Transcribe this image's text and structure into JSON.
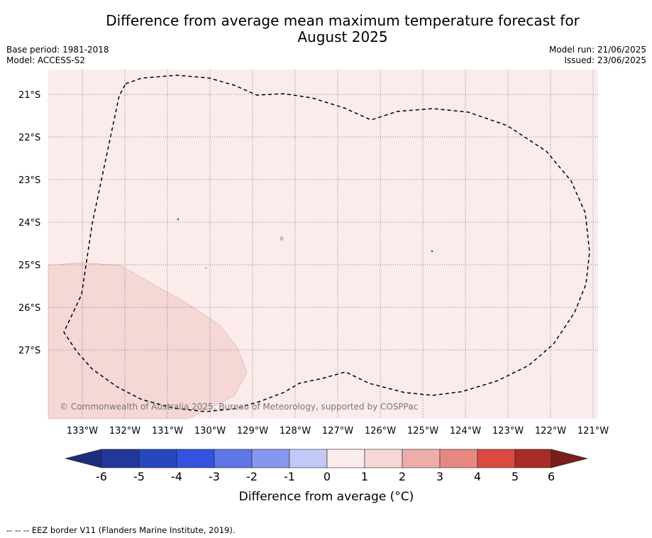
{
  "title": {
    "line1": "Difference from average mean maximum temperature forecast for",
    "line2": "August 2025"
  },
  "meta": {
    "base_period": "Base period: 1981-2018",
    "model": "Model: ACCESS-S2",
    "model_run": "Model run: 21/06/2025",
    "issued": "Issued: 23/06/2025"
  },
  "map": {
    "lon_labels": [
      "133°W",
      "132°W",
      "131°W",
      "130°W",
      "129°W",
      "128°W",
      "127°W",
      "126°W",
      "125°W",
      "124°W",
      "123°W",
      "122°W",
      "121°W"
    ],
    "lat_labels": [
      "21°S",
      "22°S",
      "23°S",
      "24°S",
      "25°S",
      "26°S",
      "27°S"
    ],
    "copyright": "© Commonwealth of Australia 2025, Bureau of Meteorology, supported by COSPPac",
    "fill_colors": {
      "plus_0_1": "#fbeceb",
      "plus_1_2": "#f5d7d5"
    }
  },
  "colorbar": {
    "label": "Difference from average (°C)",
    "ticks": [
      "-6",
      "-5",
      "-4",
      "-3",
      "-2",
      "-1",
      "0",
      "1",
      "2",
      "3",
      "4",
      "5",
      "6"
    ],
    "colors": [
      "#23369a",
      "#2548c0",
      "#3352e0",
      "#5f76e6",
      "#8697ee",
      "#c2c9f6",
      "#e9ecfb",
      "#fbeceb",
      "#f5d7d5",
      "#edaeaa",
      "#e68882",
      "#d94a40",
      "#a92b26"
    ],
    "min_extend_color": "#1c2d7a",
    "max_extend_color": "#7a1e1a"
  },
  "footnote": "-- -- -- EEZ border V11 (Flanders Marine Institute, 2019)."
}
